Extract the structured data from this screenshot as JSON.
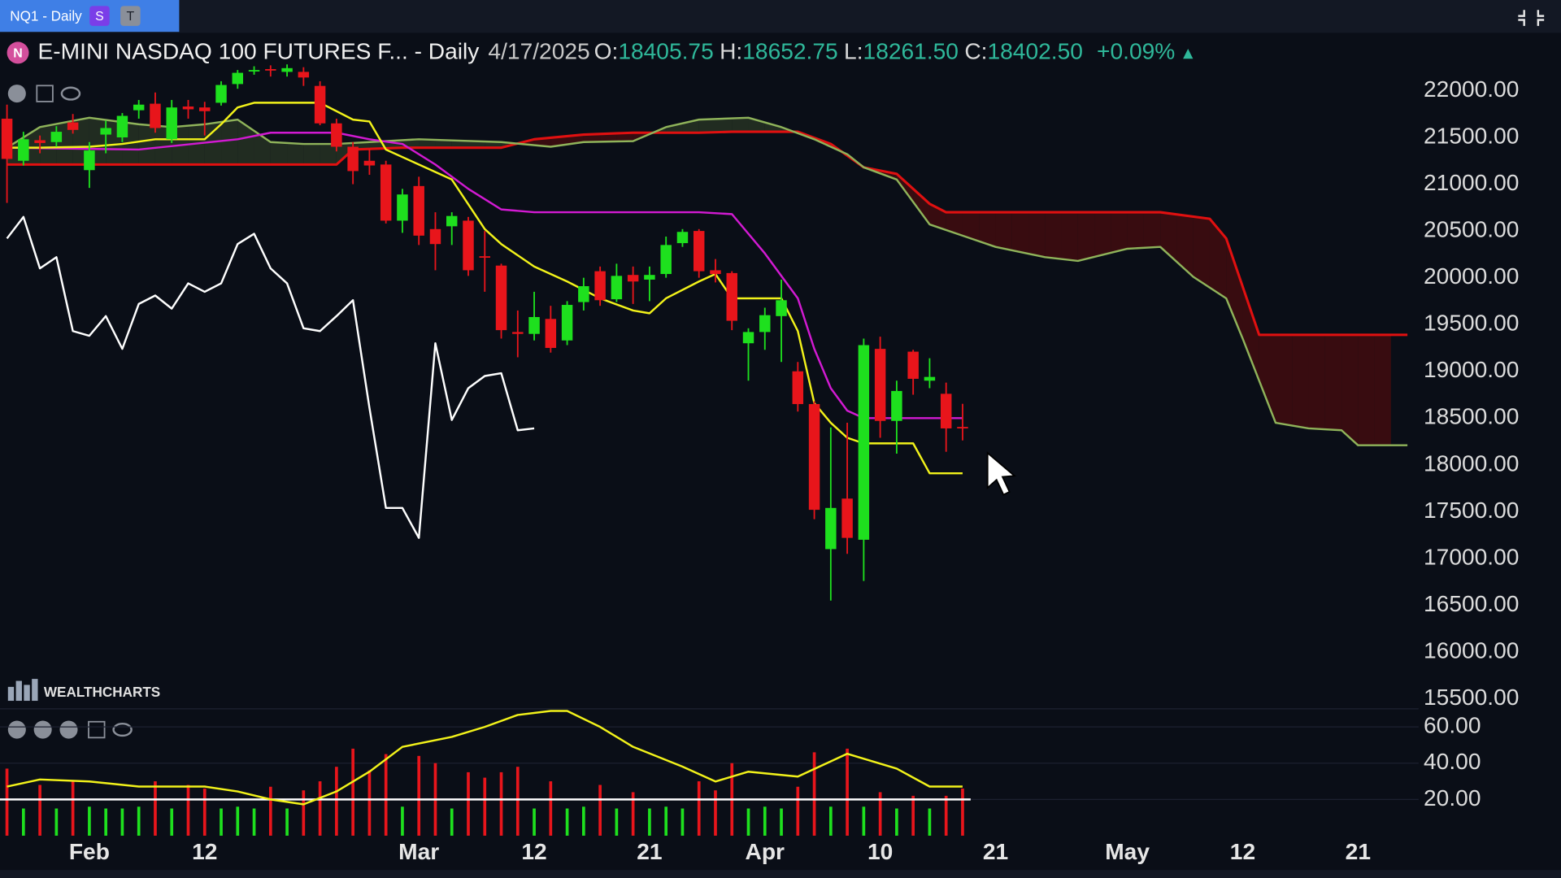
{
  "toolbar": {
    "tab": "NQ1 - Daily",
    "badges": [
      "S",
      "T"
    ]
  },
  "header": {
    "icon": "N",
    "title": "E-MINI NASDAQ 100 FUTURES F... - Daily",
    "date": "4/17/2025",
    "fields": [
      {
        "label": "O:",
        "value": "18405.75"
      },
      {
        "label": "H:",
        "value": "18652.75"
      },
      {
        "label": "L:",
        "value": "18261.50"
      },
      {
        "label": "C:",
        "value": "18402.50"
      }
    ],
    "change": "+0.09%"
  },
  "watermark": "WEALTHCHARTS",
  "chart_data": [
    {
      "type": "candlestick",
      "categories": [
        null,
        null,
        null,
        null,
        null,
        "Feb",
        null,
        null,
        null,
        null,
        null,
        null,
        "12",
        null,
        null,
        null,
        null,
        null,
        null,
        null,
        null,
        null,
        null,
        null,
        null,
        "Mar",
        null,
        null,
        null,
        null,
        null,
        null,
        "12",
        null,
        null,
        null,
        null,
        null,
        null,
        "21",
        null,
        null,
        null,
        null,
        null,
        null,
        "Apr",
        null,
        null,
        null,
        null,
        null,
        null,
        "10",
        null,
        null,
        null,
        null,
        null,
        null,
        "21",
        null,
        null,
        null,
        null,
        null,
        null,
        null,
        "May",
        null,
        null,
        null,
        null,
        null,
        null,
        "12",
        null,
        null,
        null,
        null,
        null,
        null,
        "21",
        null,
        null
      ],
      "open": [
        21700,
        21250,
        21470,
        21450,
        21660,
        21150,
        21530,
        21500,
        21790,
        21860,
        21480,
        21830,
        21820,
        21870,
        22070,
        22210,
        22230,
        22200,
        22200,
        22050,
        21650,
        21400,
        21250,
        21210,
        20610,
        20980,
        20520,
        20550,
        20610,
        20230,
        20130,
        19420,
        19400,
        19560,
        19330,
        19740,
        20070,
        19770,
        20030,
        19980,
        20040,
        20370,
        20500,
        20080,
        20050,
        19300,
        19420,
        19590,
        19000,
        18650,
        17100,
        17640,
        17200,
        19240,
        18470,
        19210,
        18900,
        18760,
        18405.75,
        null,
        null,
        null,
        null,
        null,
        null,
        null,
        null,
        null,
        null,
        null,
        null,
        null,
        null,
        null,
        null,
        null,
        null,
        null,
        null,
        null,
        null,
        null,
        null,
        null,
        null
      ],
      "high": [
        21850,
        21560,
        21520,
        21620,
        21750,
        21450,
        21680,
        21760,
        21900,
        21980,
        21900,
        21900,
        21880,
        22100,
        22220,
        22260,
        22270,
        22280,
        22250,
        22100,
        21700,
        21450,
        21380,
        21250,
        20950,
        21080,
        20700,
        20700,
        20650,
        20500,
        20150,
        19650,
        19850,
        19700,
        19750,
        20000,
        20120,
        20150,
        20120,
        20120,
        20440,
        20520,
        20520,
        20200,
        20070,
        19460,
        19680,
        19980,
        19100,
        18680,
        18400,
        18450,
        19350,
        19370,
        18900,
        19230,
        19140,
        18880,
        18652.75,
        null,
        null,
        null,
        null,
        null,
        null,
        null,
        null,
        null,
        null,
        null,
        null,
        null,
        null,
        null,
        null,
        null,
        null,
        null,
        null,
        null,
        null,
        null,
        null,
        null,
        null
      ],
      "low": [
        20800,
        21200,
        21330,
        21400,
        21540,
        20960,
        21330,
        21450,
        21700,
        21550,
        21440,
        21700,
        21520,
        21840,
        22020,
        22170,
        22150,
        22150,
        22050,
        21630,
        21350,
        21000,
        21100,
        20580,
        20480,
        20350,
        20080,
        20350,
        20020,
        19850,
        19350,
        19150,
        19330,
        19200,
        19280,
        19650,
        19700,
        19740,
        19720,
        19750,
        20000,
        20330,
        20000,
        19950,
        19440,
        18900,
        19230,
        19100,
        18570,
        17420,
        16550,
        17050,
        16760,
        18290,
        18120,
        18750,
        18820,
        18140,
        18261.5,
        null,
        null,
        null,
        null,
        null,
        null,
        null,
        null,
        null,
        null,
        null,
        null,
        null,
        null,
        null,
        null,
        null,
        null,
        null,
        null,
        null,
        null,
        null,
        null,
        null,
        null
      ],
      "close": [
        21270,
        21480,
        21440,
        21560,
        21580,
        21360,
        21600,
        21730,
        21850,
        21600,
        21820,
        21800,
        21780,
        22060,
        22190,
        22220,
        22220,
        22240,
        22140,
        21650,
        21400,
        21140,
        21200,
        20610,
        20890,
        20450,
        20360,
        20660,
        20080,
        20220,
        19440,
        19400,
        19580,
        19250,
        19710,
        19910,
        19760,
        20020,
        19960,
        20030,
        20350,
        20490,
        20070,
        20040,
        19540,
        19420,
        19600,
        19760,
        18650,
        17520,
        17540,
        17220,
        19280,
        18470,
        18790,
        18920,
        18940,
        18390,
        18402.5,
        null,
        null,
        null,
        null,
        null,
        null,
        null,
        null,
        null,
        null,
        null,
        null,
        null,
        null,
        null,
        null,
        null,
        null,
        null,
        null,
        null,
        null,
        null,
        null,
        null,
        null
      ],
      "up_color": "#1ee01e",
      "down_color": "#e8151b",
      "lines": [
        {
          "color": "#ffffff",
          "x": [
            0,
            1,
            2,
            3,
            4,
            5,
            6,
            7,
            8,
            9,
            10,
            11,
            12,
            13,
            14,
            15,
            16,
            17,
            18,
            19,
            20,
            21,
            22,
            23,
            24,
            25,
            26,
            27,
            28,
            29,
            30,
            31,
            32
          ],
          "values": [
            20420,
            20650,
            20100,
            20220,
            19430,
            19380,
            19590,
            19240,
            19720,
            19810,
            19670,
            19940,
            19850,
            19940,
            20360,
            20470,
            20100,
            19940,
            19460,
            19430,
            19590,
            19760,
            18610,
            17540,
            17540,
            17220,
            19300,
            18480,
            18820,
            18950,
            18980,
            18370,
            18390
          ]
        },
        {
          "color": "#f2f21a",
          "x": [
            0,
            2,
            5,
            7,
            9,
            12,
            13,
            14,
            15,
            17,
            19,
            21,
            22,
            23,
            25,
            27,
            29,
            30,
            32,
            34,
            36,
            38,
            39,
            40,
            42,
            43,
            44,
            47,
            48,
            49,
            50,
            51,
            52,
            54,
            55,
            56,
            58
          ],
          "values": [
            21390,
            21390,
            21400,
            21430,
            21480,
            21480,
            21640,
            21820,
            21870,
            21870,
            21870,
            21690,
            21670,
            21370,
            21210,
            21050,
            20520,
            20360,
            20120,
            19960,
            19780,
            19650,
            19620,
            19780,
            19960,
            20040,
            19780,
            19780,
            19430,
            18660,
            18450,
            18290,
            18230,
            18230,
            18230,
            17910,
            17910
          ]
        },
        {
          "color": "#d21ad2",
          "x": [
            0,
            8,
            14,
            16,
            20,
            22,
            24,
            26,
            28,
            30,
            32,
            42,
            44,
            46,
            48,
            49,
            50,
            51,
            52,
            58
          ],
          "values": [
            21390,
            21370,
            21480,
            21550,
            21550,
            21480,
            21430,
            21210,
            20950,
            20730,
            20700,
            20700,
            20680,
            20260,
            19780,
            19240,
            18820,
            18580,
            18500,
            18500
          ]
        },
        {
          "color": "#e01010",
          "x": [
            0,
            20,
            21,
            24,
            30,
            32,
            35,
            38,
            42,
            44,
            48,
            50,
            52,
            54,
            56,
            57,
            60,
            70,
            73,
            74,
            76,
            85
          ],
          "values": [
            21210,
            21210,
            21370,
            21390,
            21390,
            21480,
            21530,
            21550,
            21550,
            21560,
            21560,
            21430,
            21180,
            21110,
            20790,
            20700,
            20700,
            20700,
            20630,
            20420,
            19390,
            19390
          ]
        },
        {
          "color": "#8fb35a",
          "x": [
            0,
            2,
            5,
            8,
            10,
            12,
            14,
            16,
            18,
            20,
            22,
            25,
            30,
            33,
            35,
            38,
            40,
            42,
            45,
            47,
            49,
            51,
            52,
            54,
            56,
            58,
            60,
            63,
            65,
            68,
            70,
            72,
            74,
            75,
            77,
            79,
            81,
            82,
            85
          ],
          "values": [
            21390,
            21610,
            21710,
            21640,
            21610,
            21640,
            21690,
            21450,
            21430,
            21430,
            21450,
            21480,
            21450,
            21400,
            21450,
            21460,
            21610,
            21690,
            21710,
            21610,
            21480,
            21320,
            21180,
            21050,
            20570,
            20450,
            20330,
            20220,
            20180,
            20310,
            20330,
            20010,
            19780,
            19350,
            18450,
            18390,
            18370,
            18210,
            18210
          ]
        }
      ],
      "ylim": [
        15415,
        22564
      ],
      "yticks": [
        {
          "value": 22000,
          "label": "22000.00"
        },
        {
          "value": 21500,
          "label": "21500.00"
        },
        {
          "value": 21000,
          "label": "21000.00"
        },
        {
          "value": 20500,
          "label": "20500.00"
        },
        {
          "value": 20000,
          "label": "20000.00"
        },
        {
          "value": 19500,
          "label": "19500.00"
        },
        {
          "value": 19000,
          "label": "19000.00"
        },
        {
          "value": 18500,
          "label": "18500.00"
        },
        {
          "value": 18000,
          "label": "18000.00"
        },
        {
          "value": 17500,
          "label": "17500.00"
        },
        {
          "value": 17000,
          "label": "17000.00"
        },
        {
          "value": 16500,
          "label": "16500.00"
        },
        {
          "value": 16000,
          "label": "16000.00"
        },
        {
          "value": 15500,
          "label": "15500.00"
        }
      ],
      "grid": false
    },
    {
      "type": "bar",
      "values": [
        37,
        15,
        28,
        15,
        30,
        16,
        15,
        15,
        16,
        30,
        15,
        28,
        26,
        15,
        16,
        15,
        27,
        15,
        25,
        30,
        38,
        48,
        36,
        45,
        16,
        44,
        40,
        15,
        35,
        32,
        35,
        38,
        15,
        30,
        15,
        16,
        28,
        15,
        24,
        15,
        16,
        15,
        30,
        25,
        40,
        15,
        16,
        15,
        27,
        46,
        16,
        48,
        16,
        24,
        15,
        22,
        15,
        22,
        26
      ],
      "line": {
        "color": "#f2f21a",
        "x": [
          0,
          2,
          5,
          8,
          12,
          14,
          16,
          18,
          20,
          22,
          24,
          27,
          29,
          31,
          33,
          34,
          36,
          38,
          41,
          43,
          45,
          48,
          51,
          54,
          56,
          58
        ],
        "values": [
          27.1,
          31,
          29.9,
          27.1,
          27.1,
          24.4,
          20,
          17.3,
          24.4,
          35.3,
          49,
          54.5,
          60,
          66.6,
          68.8,
          68.8,
          60,
          49,
          38.1,
          29.9,
          35.3,
          32.6,
          45.2,
          37,
          27.1,
          27.1
        ]
      },
      "hline": 20,
      "ylim": [
        0,
        70
      ],
      "yticks": [
        {
          "value": 60,
          "label": "60.00"
        },
        {
          "value": 40,
          "label": "40.00"
        },
        {
          "value": 20,
          "label": "20.00"
        }
      ],
      "grid": true
    }
  ]
}
